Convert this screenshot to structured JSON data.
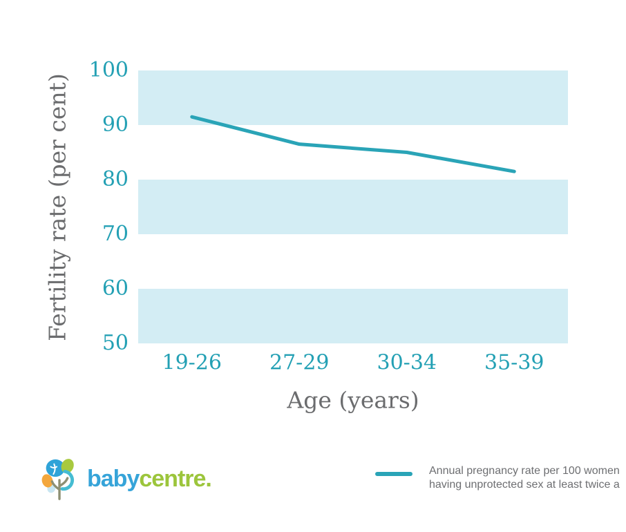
{
  "chart_data": {
    "type": "line",
    "categories": [
      "19-26",
      "27-29",
      "30-34",
      "35-39"
    ],
    "series": [
      {
        "name": "Annual pregnancy rate per 100 women having unprotected sex at least twice a",
        "values": [
          91.5,
          86.5,
          85,
          81.5
        ]
      }
    ],
    "title": "",
    "xlabel": "Age (years)",
    "ylabel": "Fertility rate (per cent)",
    "ylim": [
      50,
      100
    ],
    "yticks": [
      100,
      90,
      80,
      70,
      60,
      50
    ],
    "grid": "off",
    "banding": "alternating horizontal bands filled between 90-100, 70-80, 50-60",
    "legend_position": "bottom-right",
    "band_color": "#d3edf4",
    "line_color": "#2aa4b7",
    "tick_color": "#23a0b4",
    "axis_label_color": "#6b6c6e"
  },
  "legend": {
    "swatch_color": "#2aa4b7",
    "line1": "Annual pregnancy rate per 100 women",
    "line2": "having unprotected sex at least twice a",
    "text_color": "#6d6e71"
  },
  "branding": {
    "name_part1": "baby",
    "name_part2": "centre",
    "name_suffix": ".",
    "blue": "#36a4d9",
    "green": "#9cc53c"
  }
}
